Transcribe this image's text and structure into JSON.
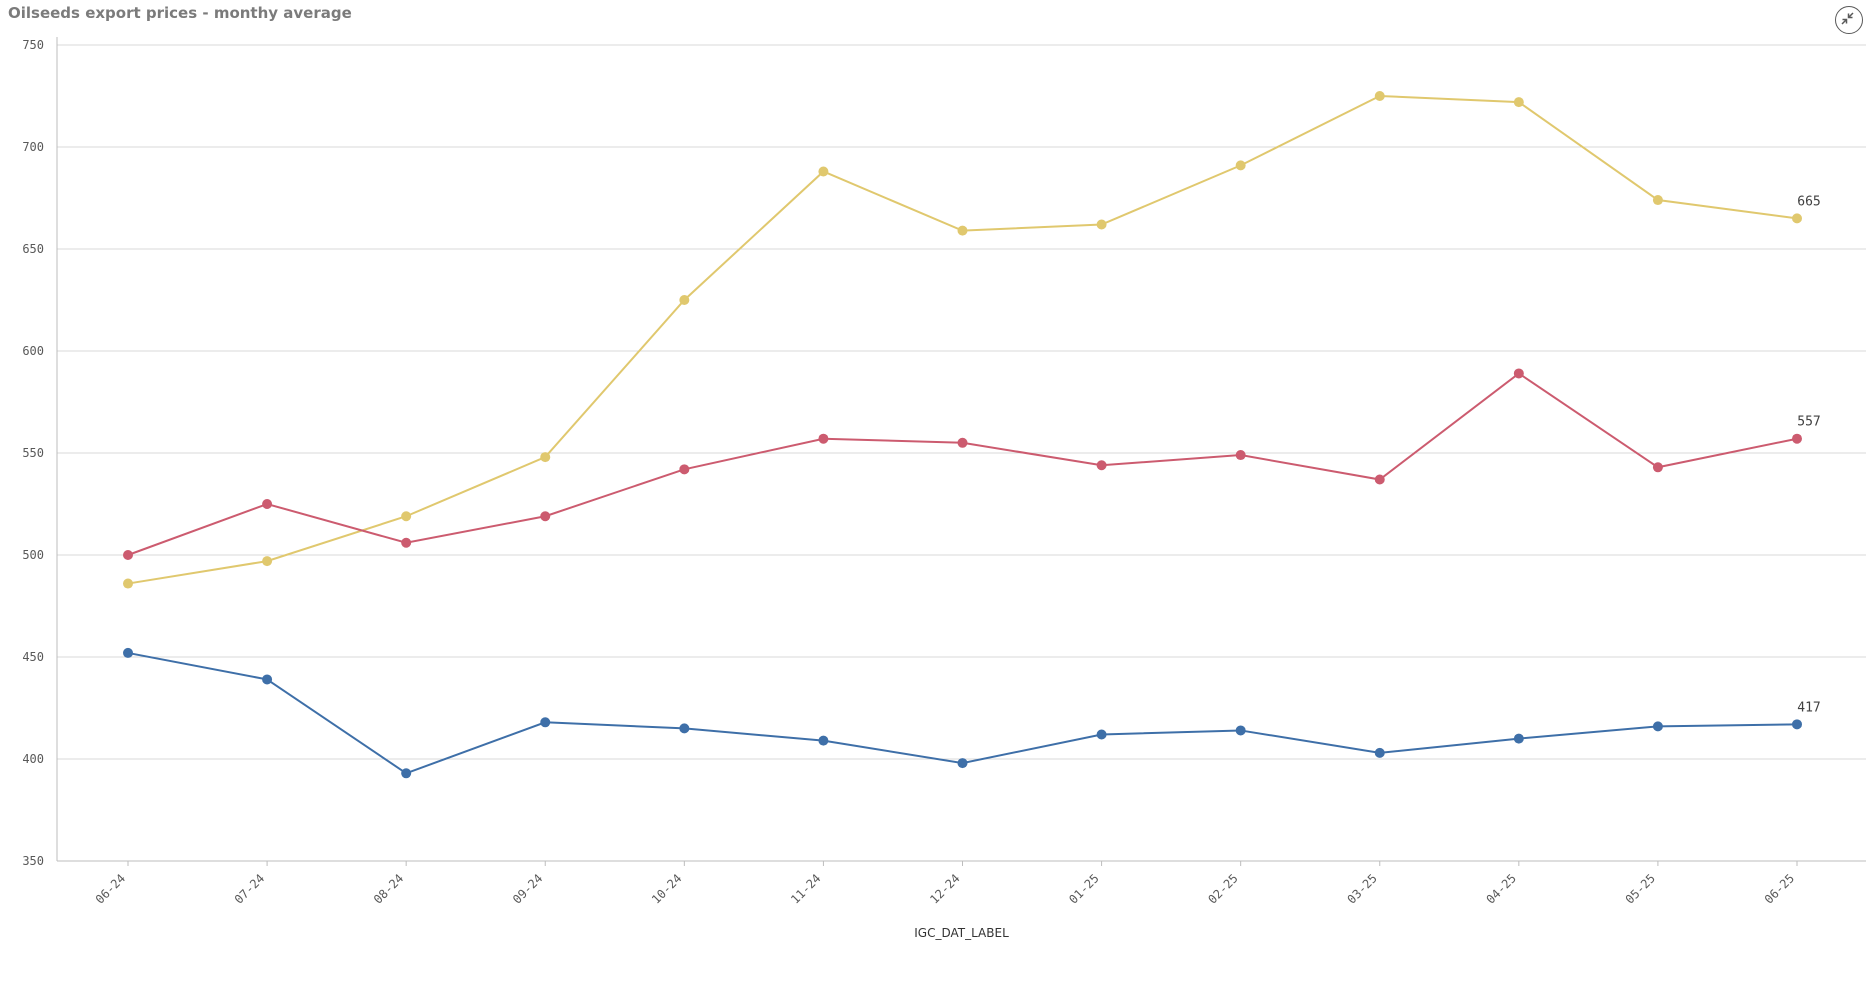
{
  "title": "Oilseeds export prices - monthy average",
  "exit_fullscreen_icon": "exit-fullscreen-icon",
  "chart_data": {
    "type": "line",
    "title": "Oilseeds export prices - monthy average",
    "xlabel": "IGC_DAT_LABEL",
    "ylabel": "",
    "ylim": [
      350,
      750
    ],
    "yticks": [
      350,
      400,
      450,
      500,
      550,
      600,
      650,
      700,
      750
    ],
    "grid": true,
    "legend": "none",
    "categories": [
      "06-24",
      "07-24",
      "08-24",
      "09-24",
      "10-24",
      "11-24",
      "12-24",
      "01-25",
      "02-25",
      "03-25",
      "04-25",
      "05-25",
      "06-25"
    ],
    "series": [
      {
        "color": "#e0c86e",
        "values": [
          486,
          497,
          519,
          548,
          625,
          688,
          659,
          662,
          691,
          725,
          722,
          674,
          665
        ],
        "end_label": "665"
      },
      {
        "color": "#cc5b6f",
        "values": [
          500,
          525,
          506,
          519,
          542,
          557,
          555,
          544,
          549,
          537,
          589,
          543,
          557
        ],
        "end_label": "557"
      },
      {
        "color": "#3e6fa8",
        "values": [
          452,
          439,
          393,
          418,
          415,
          409,
          398,
          412,
          414,
          403,
          410,
          416,
          417
        ],
        "end_label": "417"
      }
    ]
  }
}
